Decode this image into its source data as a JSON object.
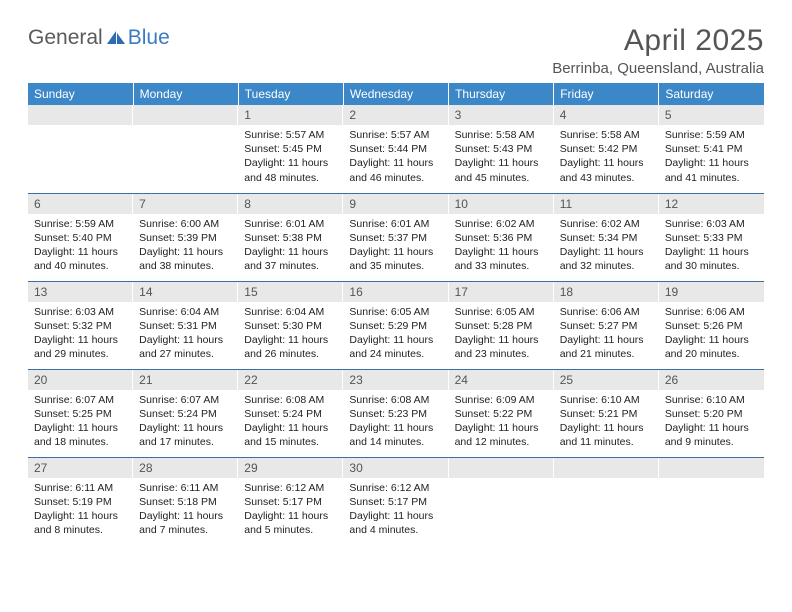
{
  "brand": {
    "part1": "General",
    "part2": "Blue"
  },
  "title": "April 2025",
  "location": "Berrinba, Queensland, Australia",
  "colors": {
    "header_bg": "#3b87c8",
    "header_text": "#ffffff",
    "daynum_bg": "#e8e8e8",
    "row_border": "#3b6ea3",
    "title_color": "#555555",
    "logo_gray": "#5b5b5b",
    "logo_blue": "#3b7bc4"
  },
  "day_headers": [
    "Sunday",
    "Monday",
    "Tuesday",
    "Wednesday",
    "Thursday",
    "Friday",
    "Saturday"
  ],
  "weeks": [
    [
      {
        "n": "",
        "sr": "",
        "ss": "",
        "dl": ""
      },
      {
        "n": "",
        "sr": "",
        "ss": "",
        "dl": ""
      },
      {
        "n": "1",
        "sr": "Sunrise: 5:57 AM",
        "ss": "Sunset: 5:45 PM",
        "dl": "Daylight: 11 hours and 48 minutes."
      },
      {
        "n": "2",
        "sr": "Sunrise: 5:57 AM",
        "ss": "Sunset: 5:44 PM",
        "dl": "Daylight: 11 hours and 46 minutes."
      },
      {
        "n": "3",
        "sr": "Sunrise: 5:58 AM",
        "ss": "Sunset: 5:43 PM",
        "dl": "Daylight: 11 hours and 45 minutes."
      },
      {
        "n": "4",
        "sr": "Sunrise: 5:58 AM",
        "ss": "Sunset: 5:42 PM",
        "dl": "Daylight: 11 hours and 43 minutes."
      },
      {
        "n": "5",
        "sr": "Sunrise: 5:59 AM",
        "ss": "Sunset: 5:41 PM",
        "dl": "Daylight: 11 hours and 41 minutes."
      }
    ],
    [
      {
        "n": "6",
        "sr": "Sunrise: 5:59 AM",
        "ss": "Sunset: 5:40 PM",
        "dl": "Daylight: 11 hours and 40 minutes."
      },
      {
        "n": "7",
        "sr": "Sunrise: 6:00 AM",
        "ss": "Sunset: 5:39 PM",
        "dl": "Daylight: 11 hours and 38 minutes."
      },
      {
        "n": "8",
        "sr": "Sunrise: 6:01 AM",
        "ss": "Sunset: 5:38 PM",
        "dl": "Daylight: 11 hours and 37 minutes."
      },
      {
        "n": "9",
        "sr": "Sunrise: 6:01 AM",
        "ss": "Sunset: 5:37 PM",
        "dl": "Daylight: 11 hours and 35 minutes."
      },
      {
        "n": "10",
        "sr": "Sunrise: 6:02 AM",
        "ss": "Sunset: 5:36 PM",
        "dl": "Daylight: 11 hours and 33 minutes."
      },
      {
        "n": "11",
        "sr": "Sunrise: 6:02 AM",
        "ss": "Sunset: 5:34 PM",
        "dl": "Daylight: 11 hours and 32 minutes."
      },
      {
        "n": "12",
        "sr": "Sunrise: 6:03 AM",
        "ss": "Sunset: 5:33 PM",
        "dl": "Daylight: 11 hours and 30 minutes."
      }
    ],
    [
      {
        "n": "13",
        "sr": "Sunrise: 6:03 AM",
        "ss": "Sunset: 5:32 PM",
        "dl": "Daylight: 11 hours and 29 minutes."
      },
      {
        "n": "14",
        "sr": "Sunrise: 6:04 AM",
        "ss": "Sunset: 5:31 PM",
        "dl": "Daylight: 11 hours and 27 minutes."
      },
      {
        "n": "15",
        "sr": "Sunrise: 6:04 AM",
        "ss": "Sunset: 5:30 PM",
        "dl": "Daylight: 11 hours and 26 minutes."
      },
      {
        "n": "16",
        "sr": "Sunrise: 6:05 AM",
        "ss": "Sunset: 5:29 PM",
        "dl": "Daylight: 11 hours and 24 minutes."
      },
      {
        "n": "17",
        "sr": "Sunrise: 6:05 AM",
        "ss": "Sunset: 5:28 PM",
        "dl": "Daylight: 11 hours and 23 minutes."
      },
      {
        "n": "18",
        "sr": "Sunrise: 6:06 AM",
        "ss": "Sunset: 5:27 PM",
        "dl": "Daylight: 11 hours and 21 minutes."
      },
      {
        "n": "19",
        "sr": "Sunrise: 6:06 AM",
        "ss": "Sunset: 5:26 PM",
        "dl": "Daylight: 11 hours and 20 minutes."
      }
    ],
    [
      {
        "n": "20",
        "sr": "Sunrise: 6:07 AM",
        "ss": "Sunset: 5:25 PM",
        "dl": "Daylight: 11 hours and 18 minutes."
      },
      {
        "n": "21",
        "sr": "Sunrise: 6:07 AM",
        "ss": "Sunset: 5:24 PM",
        "dl": "Daylight: 11 hours and 17 minutes."
      },
      {
        "n": "22",
        "sr": "Sunrise: 6:08 AM",
        "ss": "Sunset: 5:24 PM",
        "dl": "Daylight: 11 hours and 15 minutes."
      },
      {
        "n": "23",
        "sr": "Sunrise: 6:08 AM",
        "ss": "Sunset: 5:23 PM",
        "dl": "Daylight: 11 hours and 14 minutes."
      },
      {
        "n": "24",
        "sr": "Sunrise: 6:09 AM",
        "ss": "Sunset: 5:22 PM",
        "dl": "Daylight: 11 hours and 12 minutes."
      },
      {
        "n": "25",
        "sr": "Sunrise: 6:10 AM",
        "ss": "Sunset: 5:21 PM",
        "dl": "Daylight: 11 hours and 11 minutes."
      },
      {
        "n": "26",
        "sr": "Sunrise: 6:10 AM",
        "ss": "Sunset: 5:20 PM",
        "dl": "Daylight: 11 hours and 9 minutes."
      }
    ],
    [
      {
        "n": "27",
        "sr": "Sunrise: 6:11 AM",
        "ss": "Sunset: 5:19 PM",
        "dl": "Daylight: 11 hours and 8 minutes."
      },
      {
        "n": "28",
        "sr": "Sunrise: 6:11 AM",
        "ss": "Sunset: 5:18 PM",
        "dl": "Daylight: 11 hours and 7 minutes."
      },
      {
        "n": "29",
        "sr": "Sunrise: 6:12 AM",
        "ss": "Sunset: 5:17 PM",
        "dl": "Daylight: 11 hours and 5 minutes."
      },
      {
        "n": "30",
        "sr": "Sunrise: 6:12 AM",
        "ss": "Sunset: 5:17 PM",
        "dl": "Daylight: 11 hours and 4 minutes."
      },
      {
        "n": "",
        "sr": "",
        "ss": "",
        "dl": ""
      },
      {
        "n": "",
        "sr": "",
        "ss": "",
        "dl": ""
      },
      {
        "n": "",
        "sr": "",
        "ss": "",
        "dl": ""
      }
    ]
  ]
}
